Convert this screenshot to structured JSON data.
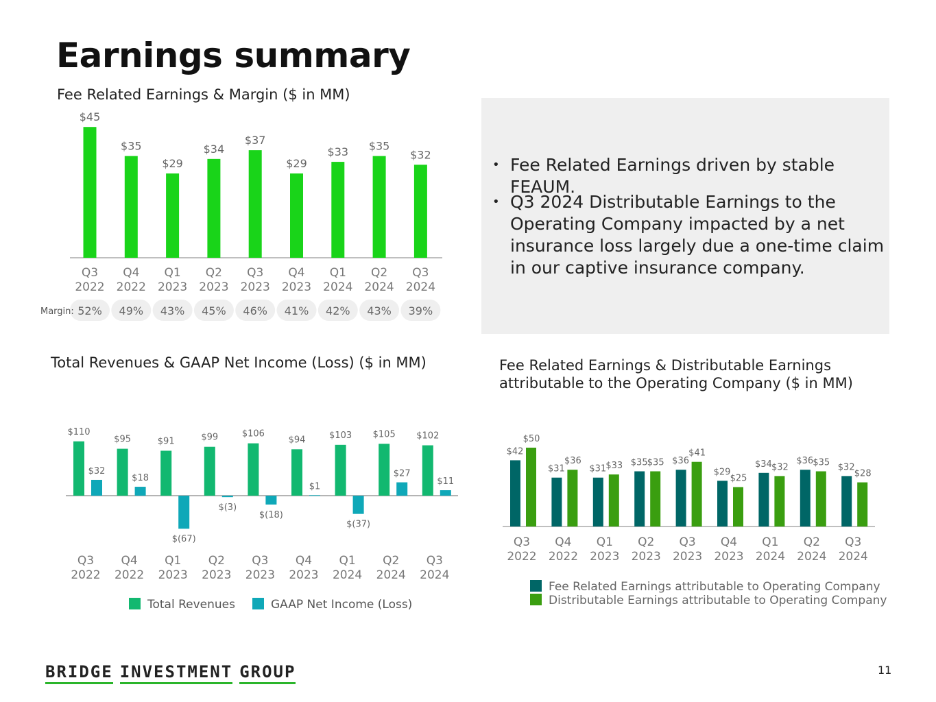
{
  "page": {
    "title": "Earnings summary",
    "page_number": "11",
    "logo_words": [
      "BRIDGE",
      "INVESTMENT",
      "GROUP"
    ]
  },
  "bullets": [
    "Fee Related Earnings driven by stable FEAUM.",
    "Q3 2024 Distributable Earnings to the Operating Company impacted by a net insurance loss largely due a one-time claim in our captive insurance company."
  ],
  "colors": {
    "fre_bar": "#19d419",
    "revenue": "#12b870",
    "net_income": "#0fa8b8",
    "fre_op": "#006666",
    "de_op": "#3a9e10",
    "pill": "#efefef",
    "logo_underline": "#2bb52b"
  },
  "chart_data": [
    {
      "id": "fre",
      "type": "bar",
      "title": "Fee Related Earnings & Margin ($ in MM)",
      "categories": [
        [
          "Q3",
          "2022"
        ],
        [
          "Q4",
          "2022"
        ],
        [
          "Q1",
          "2023"
        ],
        [
          "Q2",
          "2023"
        ],
        [
          "Q3",
          "2023"
        ],
        [
          "Q4",
          "2023"
        ],
        [
          "Q1",
          "2024"
        ],
        [
          "Q2",
          "2024"
        ],
        [
          "Q3",
          "2024"
        ]
      ],
      "values": [
        45,
        35,
        29,
        34,
        37,
        29,
        33,
        35,
        32
      ],
      "labels": [
        "$45",
        "$35",
        "$29",
        "$34",
        "$37",
        "$29",
        "$33",
        "$35",
        "$32"
      ],
      "margin_label": "Margin:",
      "margins": [
        "52%",
        "49%",
        "43%",
        "45%",
        "46%",
        "41%",
        "42%",
        "43%",
        "39%"
      ],
      "ylim": [
        0,
        45
      ]
    },
    {
      "id": "rev",
      "type": "bar",
      "title": "Total Revenues & GAAP Net Income (Loss) ($ in MM)",
      "categories": [
        [
          "Q3",
          "2022"
        ],
        [
          "Q4",
          "2022"
        ],
        [
          "Q1",
          "2023"
        ],
        [
          "Q2",
          "2023"
        ],
        [
          "Q3",
          "2023"
        ],
        [
          "Q4",
          "2023"
        ],
        [
          "Q1",
          "2024"
        ],
        [
          "Q2",
          "2024"
        ],
        [
          "Q3",
          "2024"
        ]
      ],
      "series": [
        {
          "name": "Total Revenues",
          "values": [
            110,
            95,
            91,
            99,
            106,
            94,
            103,
            105,
            102
          ],
          "labels": [
            "$110",
            "$95",
            "$91",
            "$99",
            "$106",
            "$94",
            "$103",
            "$105",
            "$102"
          ]
        },
        {
          "name": "GAAP Net Income (Loss)",
          "values": [
            32,
            18,
            -67,
            -3,
            -18,
            1,
            -37,
            27,
            11
          ],
          "labels": [
            "$32",
            "$18",
            "$(67)",
            "$(3)",
            "$(18)",
            "$1",
            "$(37)",
            "$27",
            "$11"
          ]
        }
      ],
      "legend": [
        "Total Revenues",
        "GAAP Net Income (Loss)"
      ]
    },
    {
      "id": "fde",
      "type": "bar",
      "title_lines": [
        "Fee Related Earnings & Distributable Earnings",
        "attributable to the Operating Company ($ in MM)"
      ],
      "categories": [
        [
          "Q3",
          "2022"
        ],
        [
          "Q4",
          "2022"
        ],
        [
          "Q1",
          "2023"
        ],
        [
          "Q2",
          "2023"
        ],
        [
          "Q3",
          "2023"
        ],
        [
          "Q4",
          "2023"
        ],
        [
          "Q1",
          "2024"
        ],
        [
          "Q2",
          "2024"
        ],
        [
          "Q3",
          "2024"
        ]
      ],
      "series": [
        {
          "name": "Fee Related Earnings attributable to Operating Company",
          "values": [
            42,
            31,
            31,
            35,
            36,
            29,
            34,
            36,
            32
          ],
          "labels": [
            "$42",
            "$31",
            "$31",
            "$35",
            "$36",
            "$29",
            "$34",
            "$36",
            "$32"
          ]
        },
        {
          "name": "Distributable Earnings attributable to Operating Company",
          "values": [
            50,
            36,
            33,
            35,
            41,
            25,
            32,
            35,
            28
          ],
          "labels": [
            "$50",
            "$36",
            "$33",
            "$35",
            "$41",
            "$25",
            "$32",
            "$35",
            "$28"
          ]
        }
      ],
      "legend": [
        "Fee Related Earnings attributable to Operating Company",
        "Distributable Earnings attributable to Operating Company"
      ]
    }
  ]
}
